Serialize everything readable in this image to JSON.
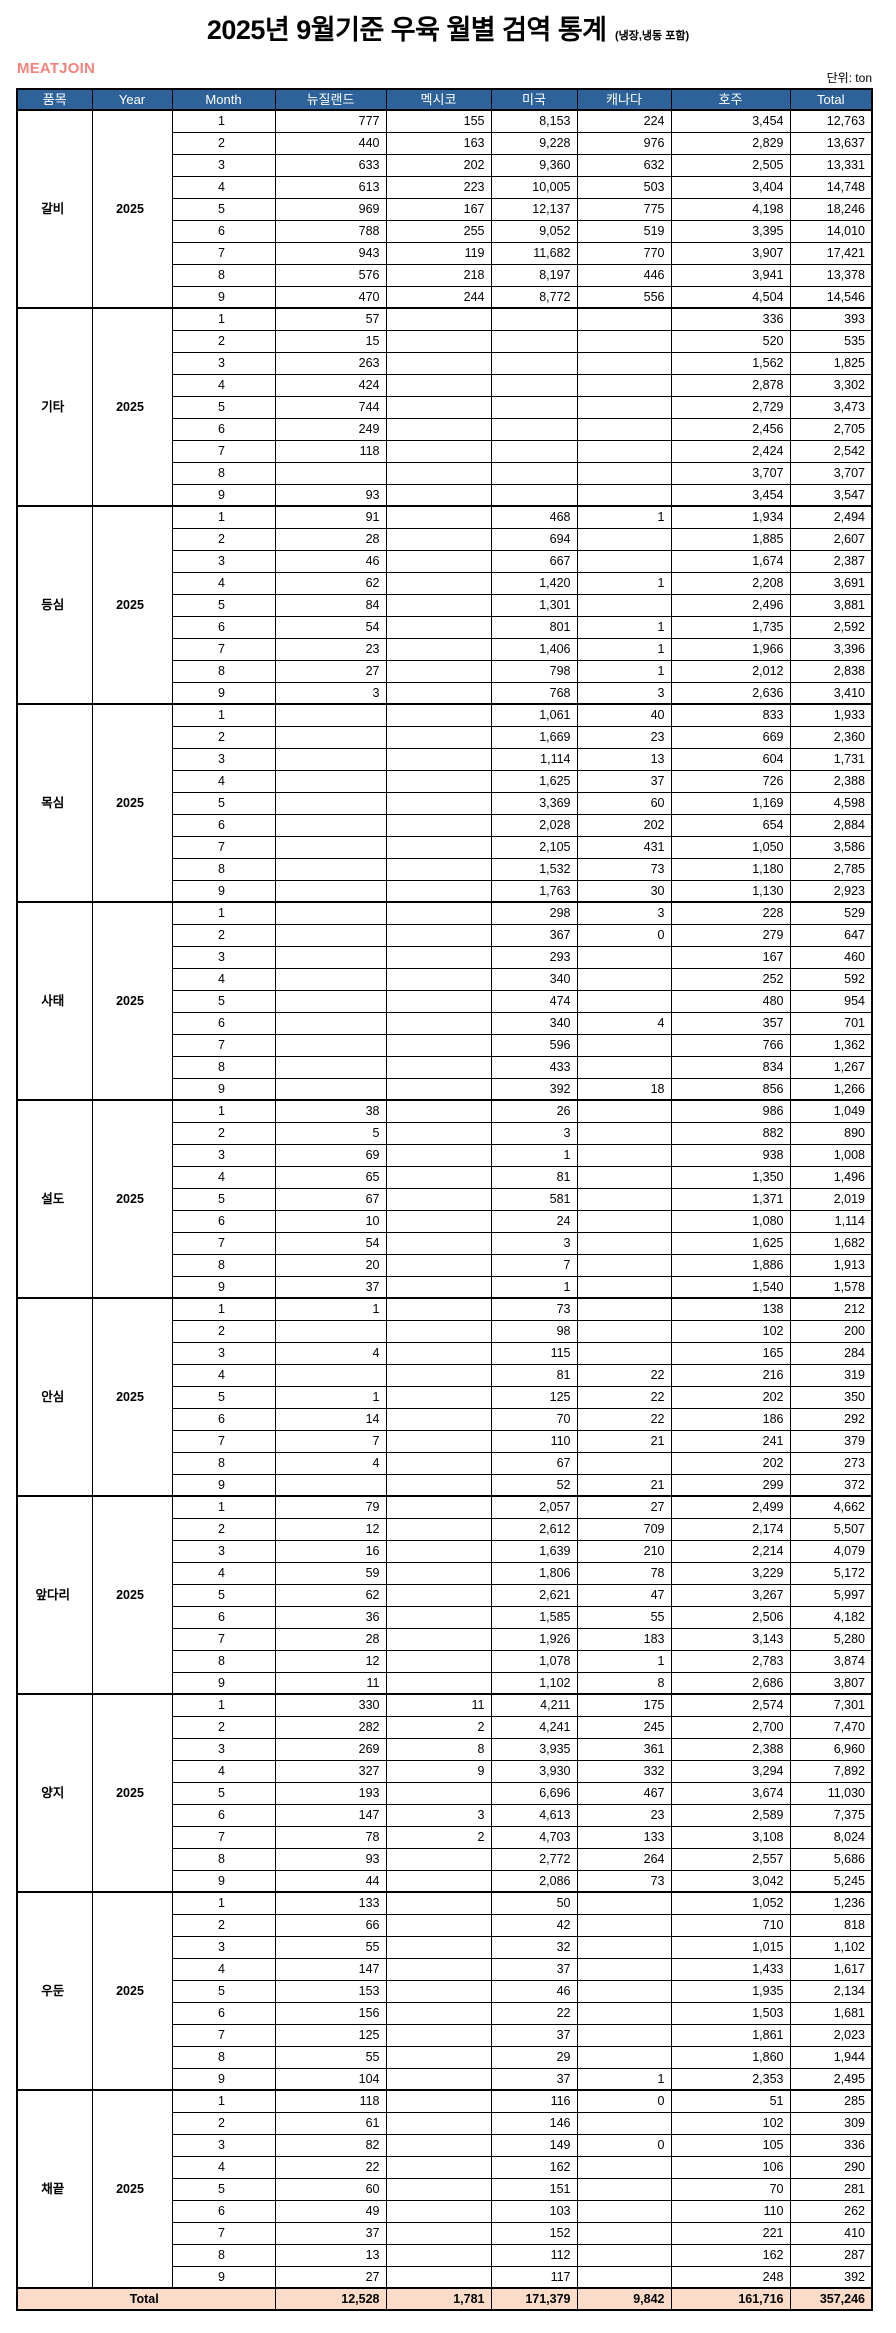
{
  "title": "2025년 9월기준 우육 월별 검역 통계",
  "title_suffix": "(냉장,냉동 포함)",
  "logo_text": "MEATJOIN",
  "unit_label": "단위: ton",
  "colors": {
    "header_bg": "#2E6399",
    "header_text": "#FFFFFF",
    "total_row_bg": "#FADCC8",
    "logo_color": "#F4827D",
    "border_color": "#000000"
  },
  "columns": [
    "품목",
    "Year",
    "Month",
    "뉴질랜드",
    "멕시코",
    "미국",
    "캐나다",
    "호주",
    "Total"
  ],
  "groups": [
    {
      "item": "갈비",
      "year": "2025",
      "rows": [
        [
          "1",
          "777",
          "155",
          "8,153",
          "224",
          "3,454",
          "12,763"
        ],
        [
          "2",
          "440",
          "163",
          "9,228",
          "976",
          "2,829",
          "13,637"
        ],
        [
          "3",
          "633",
          "202",
          "9,360",
          "632",
          "2,505",
          "13,331"
        ],
        [
          "4",
          "613",
          "223",
          "10,005",
          "503",
          "3,404",
          "14,748"
        ],
        [
          "5",
          "969",
          "167",
          "12,137",
          "775",
          "4,198",
          "18,246"
        ],
        [
          "6",
          "788",
          "255",
          "9,052",
          "519",
          "3,395",
          "14,010"
        ],
        [
          "7",
          "943",
          "119",
          "11,682",
          "770",
          "3,907",
          "17,421"
        ],
        [
          "8",
          "576",
          "218",
          "8,197",
          "446",
          "3,941",
          "13,378"
        ],
        [
          "9",
          "470",
          "244",
          "8,772",
          "556",
          "4,504",
          "14,546"
        ]
      ]
    },
    {
      "item": "기타",
      "year": "2025",
      "rows": [
        [
          "1",
          "57",
          "",
          "",
          "",
          "336",
          "393"
        ],
        [
          "2",
          "15",
          "",
          "",
          "",
          "520",
          "535"
        ],
        [
          "3",
          "263",
          "",
          "",
          "",
          "1,562",
          "1,825"
        ],
        [
          "4",
          "424",
          "",
          "",
          "",
          "2,878",
          "3,302"
        ],
        [
          "5",
          "744",
          "",
          "",
          "",
          "2,729",
          "3,473"
        ],
        [
          "6",
          "249",
          "",
          "",
          "",
          "2,456",
          "2,705"
        ],
        [
          "7",
          "118",
          "",
          "",
          "",
          "2,424",
          "2,542"
        ],
        [
          "8",
          "",
          "",
          "",
          "",
          "3,707",
          "3,707"
        ],
        [
          "9",
          "93",
          "",
          "",
          "",
          "3,454",
          "3,547"
        ]
      ]
    },
    {
      "item": "등심",
      "year": "2025",
      "rows": [
        [
          "1",
          "91",
          "",
          "468",
          "1",
          "1,934",
          "2,494"
        ],
        [
          "2",
          "28",
          "",
          "694",
          "",
          "1,885",
          "2,607"
        ],
        [
          "3",
          "46",
          "",
          "667",
          "",
          "1,674",
          "2,387"
        ],
        [
          "4",
          "62",
          "",
          "1,420",
          "1",
          "2,208",
          "3,691"
        ],
        [
          "5",
          "84",
          "",
          "1,301",
          "",
          "2,496",
          "3,881"
        ],
        [
          "6",
          "54",
          "",
          "801",
          "1",
          "1,735",
          "2,592"
        ],
        [
          "7",
          "23",
          "",
          "1,406",
          "1",
          "1,966",
          "3,396"
        ],
        [
          "8",
          "27",
          "",
          "798",
          "1",
          "2,012",
          "2,838"
        ],
        [
          "9",
          "3",
          "",
          "768",
          "3",
          "2,636",
          "3,410"
        ]
      ]
    },
    {
      "item": "목심",
      "year": "2025",
      "rows": [
        [
          "1",
          "",
          "",
          "1,061",
          "40",
          "833",
          "1,933"
        ],
        [
          "2",
          "",
          "",
          "1,669",
          "23",
          "669",
          "2,360"
        ],
        [
          "3",
          "",
          "",
          "1,114",
          "13",
          "604",
          "1,731"
        ],
        [
          "4",
          "",
          "",
          "1,625",
          "37",
          "726",
          "2,388"
        ],
        [
          "5",
          "",
          "",
          "3,369",
          "60",
          "1,169",
          "4,598"
        ],
        [
          "6",
          "",
          "",
          "2,028",
          "202",
          "654",
          "2,884"
        ],
        [
          "7",
          "",
          "",
          "2,105",
          "431",
          "1,050",
          "3,586"
        ],
        [
          "8",
          "",
          "",
          "1,532",
          "73",
          "1,180",
          "2,785"
        ],
        [
          "9",
          "",
          "",
          "1,763",
          "30",
          "1,130",
          "2,923"
        ]
      ]
    },
    {
      "item": "사태",
      "year": "2025",
      "rows": [
        [
          "1",
          "",
          "",
          "298",
          "3",
          "228",
          "529"
        ],
        [
          "2",
          "",
          "",
          "367",
          "0",
          "279",
          "647"
        ],
        [
          "3",
          "",
          "",
          "293",
          "",
          "167",
          "460"
        ],
        [
          "4",
          "",
          "",
          "340",
          "",
          "252",
          "592"
        ],
        [
          "5",
          "",
          "",
          "474",
          "",
          "480",
          "954"
        ],
        [
          "6",
          "",
          "",
          "340",
          "4",
          "357",
          "701"
        ],
        [
          "7",
          "",
          "",
          "596",
          "",
          "766",
          "1,362"
        ],
        [
          "8",
          "",
          "",
          "433",
          "",
          "834",
          "1,267"
        ],
        [
          "9",
          "",
          "",
          "392",
          "18",
          "856",
          "1,266"
        ]
      ]
    },
    {
      "item": "설도",
      "year": "2025",
      "rows": [
        [
          "1",
          "38",
          "",
          "26",
          "",
          "986",
          "1,049"
        ],
        [
          "2",
          "5",
          "",
          "3",
          "",
          "882",
          "890"
        ],
        [
          "3",
          "69",
          "",
          "1",
          "",
          "938",
          "1,008"
        ],
        [
          "4",
          "65",
          "",
          "81",
          "",
          "1,350",
          "1,496"
        ],
        [
          "5",
          "67",
          "",
          "581",
          "",
          "1,371",
          "2,019"
        ],
        [
          "6",
          "10",
          "",
          "24",
          "",
          "1,080",
          "1,114"
        ],
        [
          "7",
          "54",
          "",
          "3",
          "",
          "1,625",
          "1,682"
        ],
        [
          "8",
          "20",
          "",
          "7",
          "",
          "1,886",
          "1,913"
        ],
        [
          "9",
          "37",
          "",
          "1",
          "",
          "1,540",
          "1,578"
        ]
      ]
    },
    {
      "item": "안심",
      "year": "2025",
      "rows": [
        [
          "1",
          "1",
          "",
          "73",
          "",
          "138",
          "212"
        ],
        [
          "2",
          "",
          "",
          "98",
          "",
          "102",
          "200"
        ],
        [
          "3",
          "4",
          "",
          "115",
          "",
          "165",
          "284"
        ],
        [
          "4",
          "",
          "",
          "81",
          "22",
          "216",
          "319"
        ],
        [
          "5",
          "1",
          "",
          "125",
          "22",
          "202",
          "350"
        ],
        [
          "6",
          "14",
          "",
          "70",
          "22",
          "186",
          "292"
        ],
        [
          "7",
          "7",
          "",
          "110",
          "21",
          "241",
          "379"
        ],
        [
          "8",
          "4",
          "",
          "67",
          "",
          "202",
          "273"
        ],
        [
          "9",
          "",
          "",
          "52",
          "21",
          "299",
          "372"
        ]
      ]
    },
    {
      "item": "앞다리",
      "year": "2025",
      "rows": [
        [
          "1",
          "79",
          "",
          "2,057",
          "27",
          "2,499",
          "4,662"
        ],
        [
          "2",
          "12",
          "",
          "2,612",
          "709",
          "2,174",
          "5,507"
        ],
        [
          "3",
          "16",
          "",
          "1,639",
          "210",
          "2,214",
          "4,079"
        ],
        [
          "4",
          "59",
          "",
          "1,806",
          "78",
          "3,229",
          "5,172"
        ],
        [
          "5",
          "62",
          "",
          "2,621",
          "47",
          "3,267",
          "5,997"
        ],
        [
          "6",
          "36",
          "",
          "1,585",
          "55",
          "2,506",
          "4,182"
        ],
        [
          "7",
          "28",
          "",
          "1,926",
          "183",
          "3,143",
          "5,280"
        ],
        [
          "8",
          "12",
          "",
          "1,078",
          "1",
          "2,783",
          "3,874"
        ],
        [
          "9",
          "11",
          "",
          "1,102",
          "8",
          "2,686",
          "3,807"
        ]
      ]
    },
    {
      "item": "양지",
      "year": "2025",
      "rows": [
        [
          "1",
          "330",
          "11",
          "4,211",
          "175",
          "2,574",
          "7,301"
        ],
        [
          "2",
          "282",
          "2",
          "4,241",
          "245",
          "2,700",
          "7,470"
        ],
        [
          "3",
          "269",
          "8",
          "3,935",
          "361",
          "2,388",
          "6,960"
        ],
        [
          "4",
          "327",
          "9",
          "3,930",
          "332",
          "3,294",
          "7,892"
        ],
        [
          "5",
          "193",
          "",
          "6,696",
          "467",
          "3,674",
          "11,030"
        ],
        [
          "6",
          "147",
          "3",
          "4,613",
          "23",
          "2,589",
          "7,375"
        ],
        [
          "7",
          "78",
          "2",
          "4,703",
          "133",
          "3,108",
          "8,024"
        ],
        [
          "8",
          "93",
          "",
          "2,772",
          "264",
          "2,557",
          "5,686"
        ],
        [
          "9",
          "44",
          "",
          "2,086",
          "73",
          "3,042",
          "5,245"
        ]
      ]
    },
    {
      "item": "우둔",
      "year": "2025",
      "rows": [
        [
          "1",
          "133",
          "",
          "50",
          "",
          "1,052",
          "1,236"
        ],
        [
          "2",
          "66",
          "",
          "42",
          "",
          "710",
          "818"
        ],
        [
          "3",
          "55",
          "",
          "32",
          "",
          "1,015",
          "1,102"
        ],
        [
          "4",
          "147",
          "",
          "37",
          "",
          "1,433",
          "1,617"
        ],
        [
          "5",
          "153",
          "",
          "46",
          "",
          "1,935",
          "2,134"
        ],
        [
          "6",
          "156",
          "",
          "22",
          "",
          "1,503",
          "1,681"
        ],
        [
          "7",
          "125",
          "",
          "37",
          "",
          "1,861",
          "2,023"
        ],
        [
          "8",
          "55",
          "",
          "29",
          "",
          "1,860",
          "1,944"
        ],
        [
          "9",
          "104",
          "",
          "37",
          "1",
          "2,353",
          "2,495"
        ]
      ]
    },
    {
      "item": "채끝",
      "year": "2025",
      "rows": [
        [
          "1",
          "118",
          "",
          "116",
          "0",
          "51",
          "285"
        ],
        [
          "2",
          "61",
          "",
          "146",
          "",
          "102",
          "309"
        ],
        [
          "3",
          "82",
          "",
          "149",
          "0",
          "105",
          "336"
        ],
        [
          "4",
          "22",
          "",
          "162",
          "",
          "106",
          "290"
        ],
        [
          "5",
          "60",
          "",
          "151",
          "",
          "70",
          "281"
        ],
        [
          "6",
          "49",
          "",
          "103",
          "",
          "110",
          "262"
        ],
        [
          "7",
          "37",
          "",
          "152",
          "",
          "221",
          "410"
        ],
        [
          "8",
          "13",
          "",
          "112",
          "",
          "162",
          "287"
        ],
        [
          "9",
          "27",
          "",
          "117",
          "",
          "248",
          "392"
        ]
      ]
    }
  ],
  "total_row": {
    "label": "Total",
    "values": [
      "12,528",
      "1,781",
      "171,379",
      "9,842",
      "161,716",
      "357,246"
    ]
  }
}
